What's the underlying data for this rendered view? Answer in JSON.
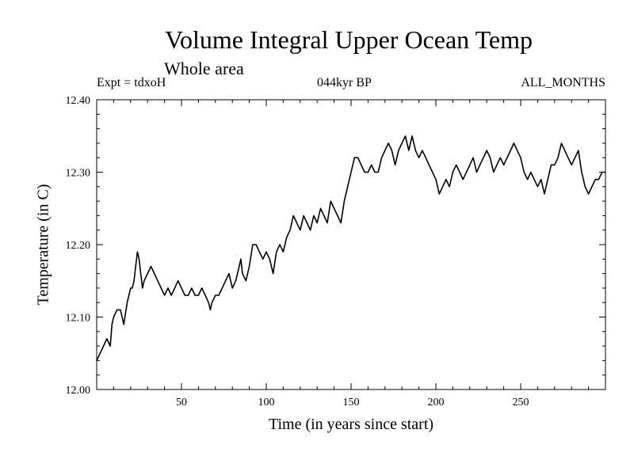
{
  "chart_data": {
    "type": "line",
    "title": "Volume Integral Upper Ocean Temp",
    "subtitle": "Whole area",
    "header_left": "Expt = tdxoH",
    "header_center": "044kyr BP",
    "header_right": "ALL_MONTHS",
    "xlabel": "Time (in years since start)",
    "ylabel": "Temperature (in C)",
    "xlim": [
      0,
      300
    ],
    "ylim": [
      12.0,
      12.4
    ],
    "xticks": [
      50,
      100,
      150,
      200,
      250
    ],
    "xtick_labels": [
      "50",
      "100",
      "150",
      "200",
      "250"
    ],
    "yticks": [
      12.0,
      12.1,
      12.2,
      12.3,
      12.4
    ],
    "ytick_labels": [
      "12.00",
      "12.10",
      "12.20",
      "12.30",
      "12.40"
    ],
    "grid": false,
    "series": [
      {
        "color": "#000000",
        "x": [
          0,
          2,
          4,
          6,
          8,
          9,
          10,
          12,
          14,
          15,
          16,
          18,
          20,
          21,
          22,
          23,
          24,
          25,
          26,
          27,
          28,
          30,
          32,
          34,
          36,
          38,
          40,
          42,
          44,
          46,
          48,
          50,
          52,
          54,
          56,
          58,
          60,
          62,
          64,
          66,
          67,
          68,
          70,
          72,
          74,
          76,
          78,
          80,
          82,
          84,
          85,
          86,
          88,
          90,
          92,
          94,
          96,
          98,
          100,
          102,
          104,
          106,
          108,
          110,
          112,
          114,
          116,
          118,
          120,
          122,
          124,
          126,
          128,
          130,
          132,
          134,
          136,
          138,
          140,
          142,
          144,
          146,
          148,
          150,
          152,
          154,
          156,
          158,
          160,
          162,
          164,
          166,
          168,
          170,
          172,
          174,
          176,
          178,
          180,
          182,
          183,
          184,
          186,
          188,
          190,
          192,
          194,
          196,
          198,
          200,
          202,
          204,
          206,
          208,
          210,
          212,
          214,
          216,
          218,
          220,
          222,
          224,
          226,
          228,
          230,
          232,
          234,
          236,
          238,
          240,
          242,
          244,
          246,
          248,
          250,
          252,
          254,
          256,
          258,
          260,
          262,
          264,
          266,
          268,
          270,
          272,
          274,
          276,
          278,
          280,
          282,
          284,
          286,
          288,
          290,
          292,
          294,
          296,
          298,
          300
        ],
        "y": [
          12.04,
          12.05,
          12.06,
          12.07,
          12.06,
          12.09,
          12.1,
          12.11,
          12.11,
          12.1,
          12.09,
          12.12,
          12.14,
          12.14,
          12.15,
          12.17,
          12.19,
          12.18,
          12.16,
          12.14,
          12.15,
          12.16,
          12.17,
          12.16,
          12.15,
          12.14,
          12.13,
          12.14,
          12.13,
          12.14,
          12.15,
          12.14,
          12.13,
          12.13,
          12.14,
          12.13,
          12.13,
          12.14,
          12.13,
          12.12,
          12.11,
          12.12,
          12.13,
          12.13,
          12.14,
          12.15,
          12.16,
          12.14,
          12.15,
          12.17,
          12.18,
          12.16,
          12.15,
          12.17,
          12.2,
          12.2,
          12.19,
          12.18,
          12.19,
          12.18,
          12.16,
          12.19,
          12.2,
          12.19,
          12.21,
          12.22,
          12.24,
          12.23,
          12.22,
          12.24,
          12.23,
          12.22,
          12.24,
          12.23,
          12.25,
          12.24,
          12.23,
          12.26,
          12.25,
          12.24,
          12.23,
          12.26,
          12.28,
          12.3,
          12.32,
          12.32,
          12.31,
          12.3,
          12.3,
          12.31,
          12.3,
          12.3,
          12.32,
          12.33,
          12.34,
          12.33,
          12.31,
          12.33,
          12.34,
          12.35,
          12.34,
          12.33,
          12.35,
          12.33,
          12.32,
          12.33,
          12.32,
          12.31,
          12.3,
          12.29,
          12.27,
          12.28,
          12.29,
          12.28,
          12.3,
          12.31,
          12.3,
          12.29,
          12.3,
          12.31,
          12.32,
          12.3,
          12.31,
          12.32,
          12.33,
          12.32,
          12.3,
          12.31,
          12.32,
          12.31,
          12.32,
          12.33,
          12.34,
          12.33,
          12.32,
          12.3,
          12.29,
          12.3,
          12.29,
          12.28,
          12.29,
          12.27,
          12.29,
          12.31,
          12.31,
          12.32,
          12.34,
          12.33,
          12.32,
          12.31,
          12.32,
          12.33,
          12.3,
          12.28,
          12.27,
          12.28,
          12.29,
          12.29,
          12.3,
          12.3
        ]
      }
    ]
  }
}
